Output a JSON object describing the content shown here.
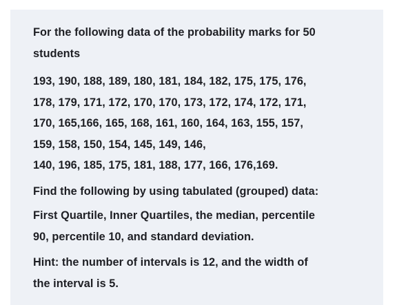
{
  "question": {
    "lines": [
      "For the following data of the probability marks for 50",
      "students"
    ]
  },
  "data_values": {
    "lines": [
      "193, 190, 188, 189, 180, 181, 184, 182, 175, 175, 176,",
      "178, 179, 171, 172, 170, 170, 173, 172, 174, 172, 171,",
      "170, 165,166, 165, 168, 161, 160, 164, 163, 155, 157,",
      "159, 158, 150, 154, 145, 149, 146,",
      "140, 196, 185, 175, 181, 188, 177, 166,  176,169."
    ]
  },
  "instruction": {
    "lines": [
      "Find the following by using tabulated (grouped) data:"
    ]
  },
  "tasks": {
    "lines": [
      "First Quartile, Inner Quartiles, the median, percentile",
      "90, percentile 10, and standard deviation."
    ]
  },
  "hint": {
    "lines": [
      "Hint: the number of intervals is 12, and the width of",
      "the interval is 5."
    ]
  }
}
